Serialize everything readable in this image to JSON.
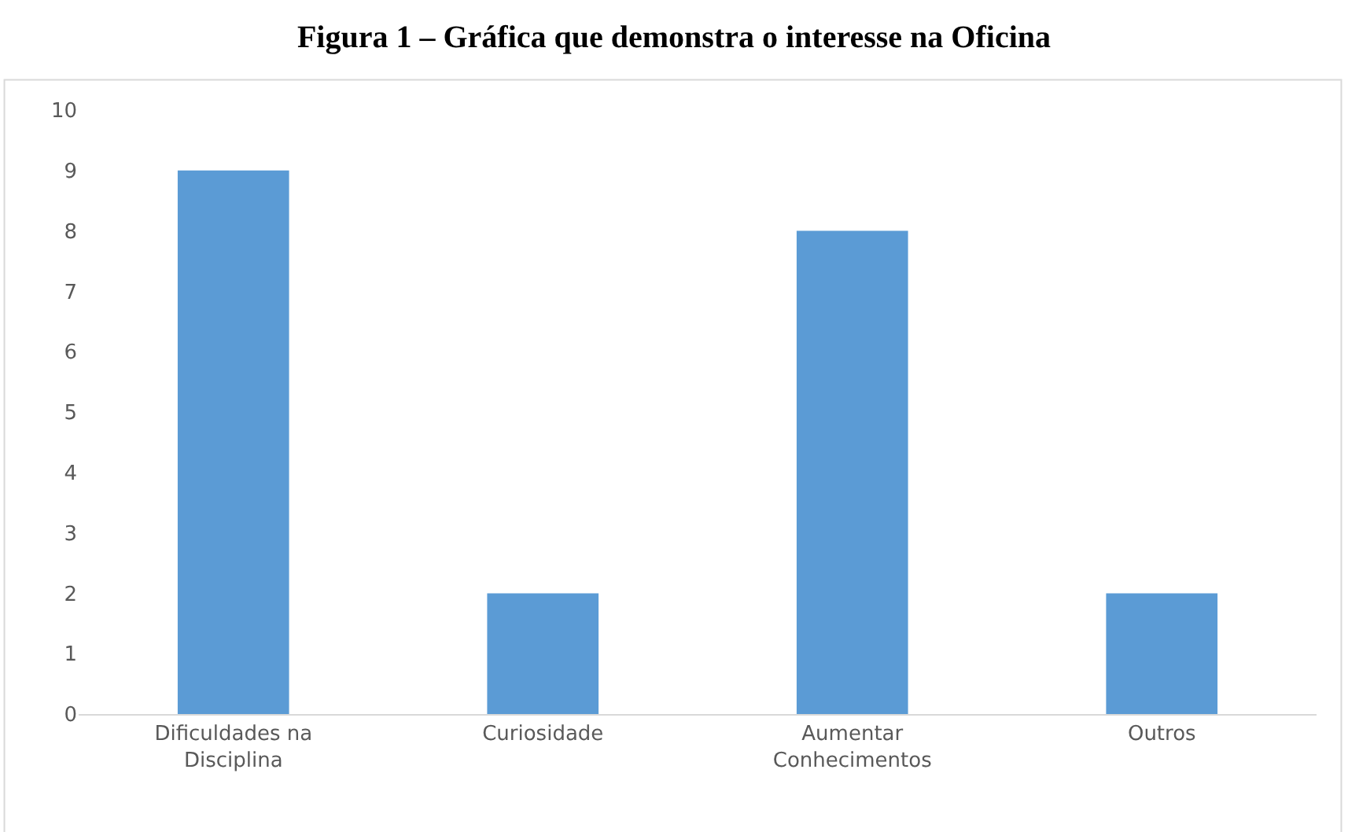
{
  "chart_data": {
    "type": "bar",
    "title": "Figura 1 – Gráfica que demonstra o interesse na Oficina",
    "categories": [
      "Dificuldades na Disciplina",
      "Curiosidade",
      "Aumentar Conhecimentos",
      "Outros"
    ],
    "values": [
      9,
      2,
      8,
      2
    ],
    "color": "#5b9bd5",
    "ylim": [
      0,
      10
    ],
    "yticks": [
      0,
      1,
      2,
      3,
      4,
      5,
      6,
      7,
      8,
      9,
      10
    ],
    "grid": false,
    "legend": false
  }
}
